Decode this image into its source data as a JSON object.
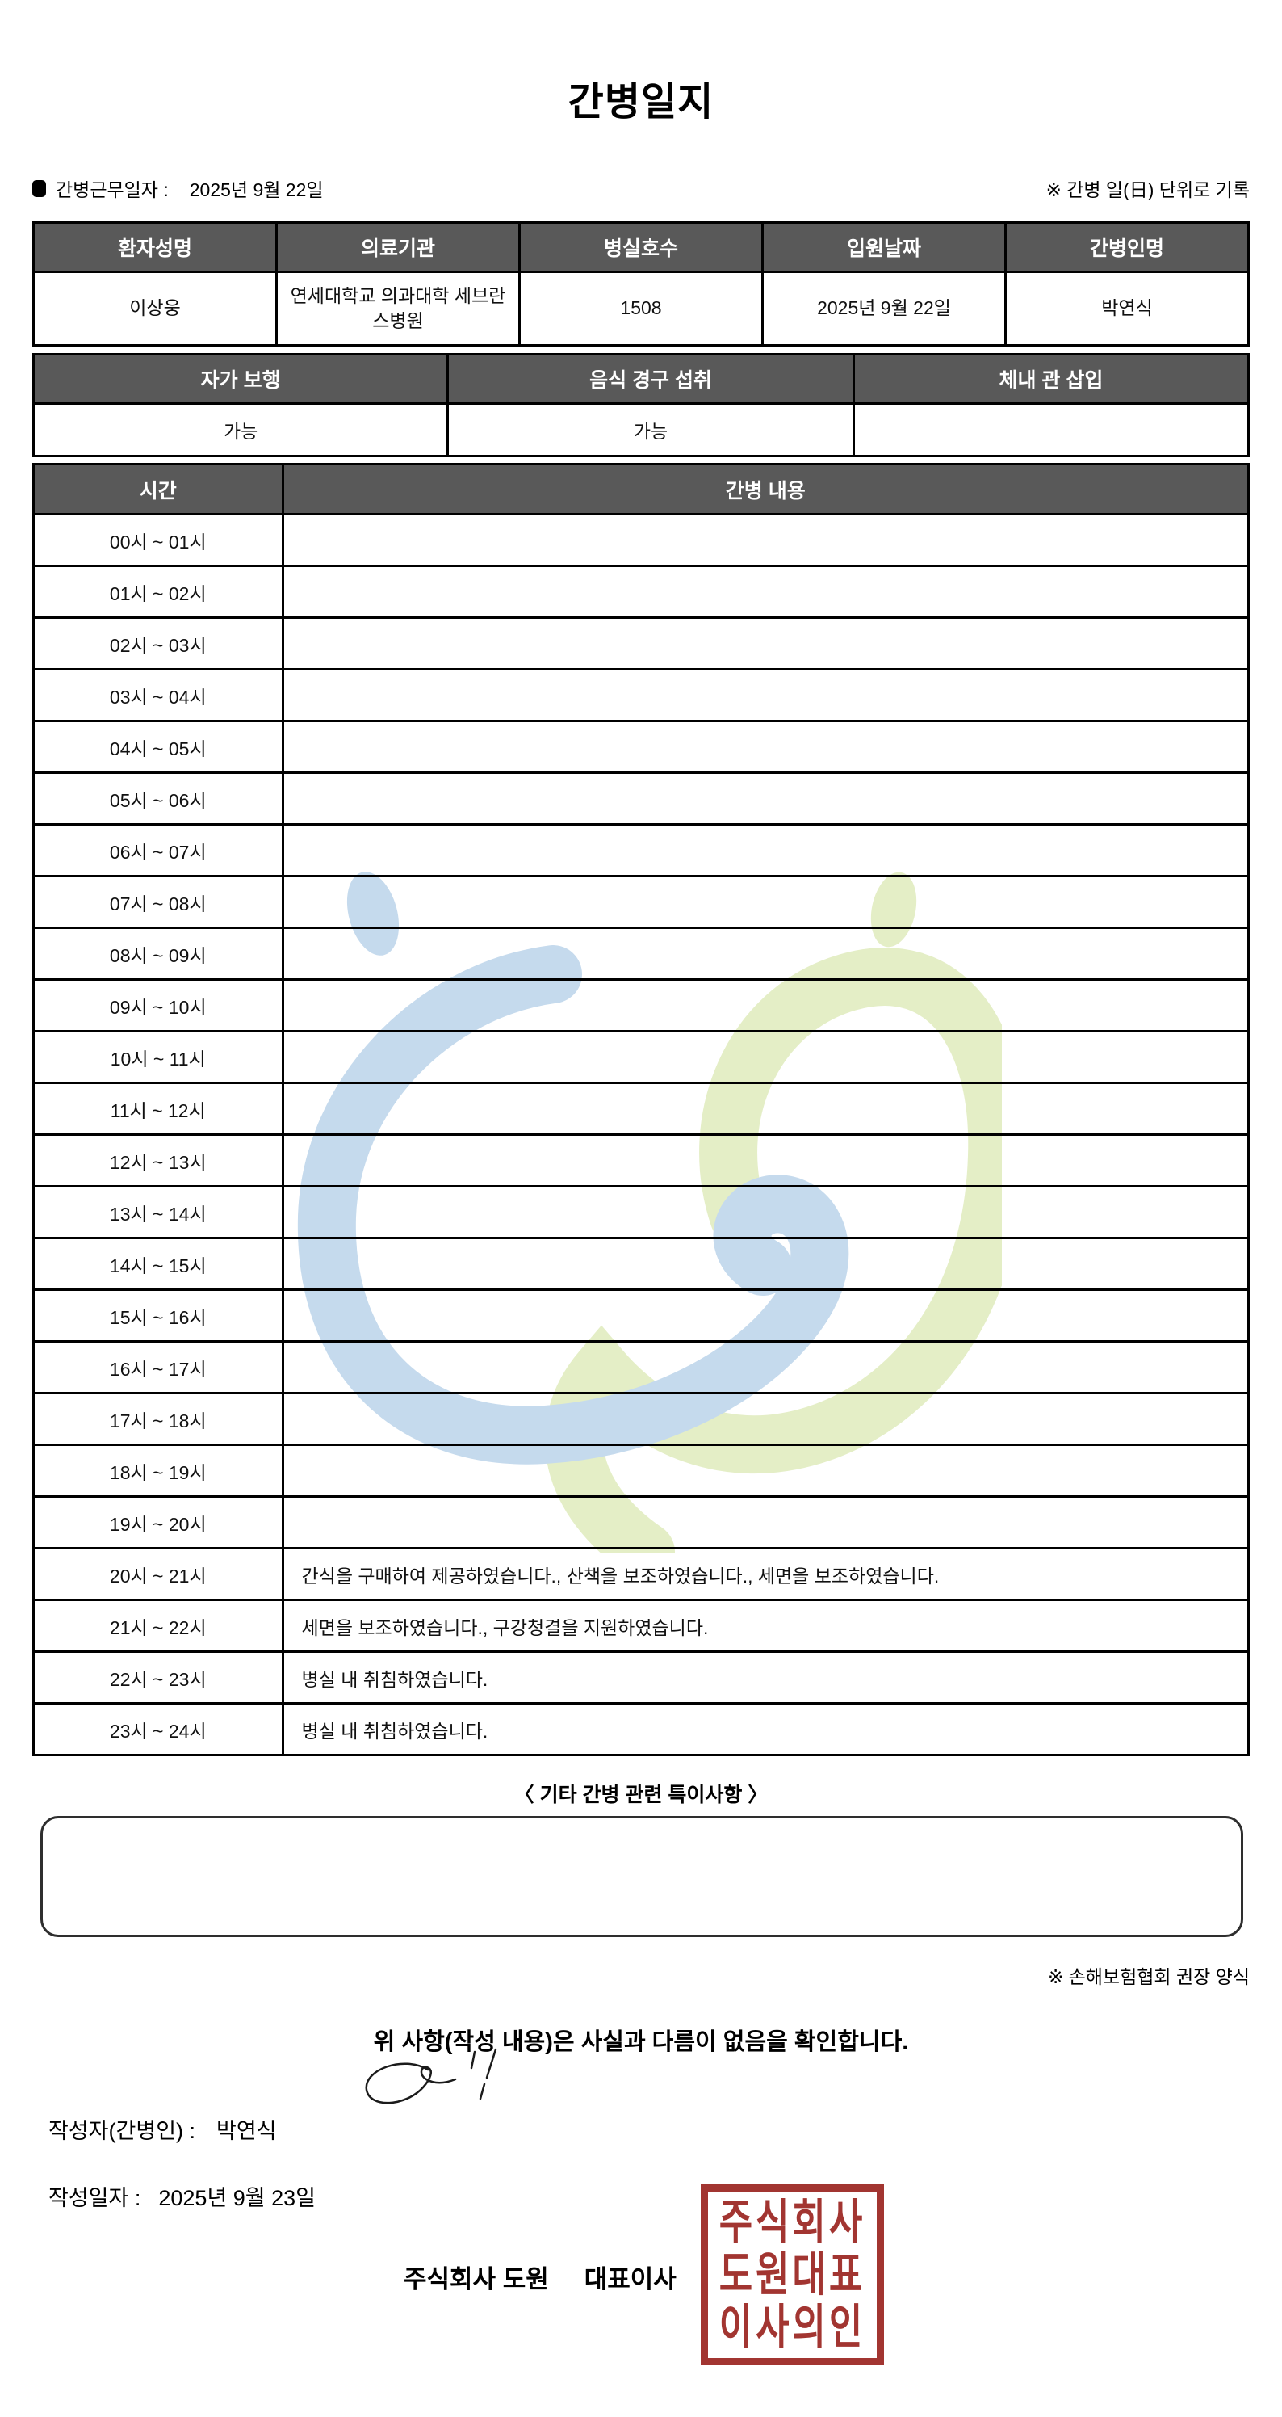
{
  "title": "간병일지",
  "meta": {
    "work_date_label": "간병근무일자 :",
    "work_date_value": "2025년 9월 22일",
    "unit_note": "※ 간병 일(日) 단위로 기록"
  },
  "info_table": {
    "headers": [
      "환자성명",
      "의료기관",
      "병실호수",
      "입원날짜",
      "간병인명"
    ],
    "values": [
      "이상웅",
      "연세대학교 의과대학 세브란스병원",
      "1508",
      "2025년 9월 22일",
      "박연식"
    ]
  },
  "condition_table": {
    "headers": [
      "자가 보행",
      "음식 경구 섭취",
      "체내 관 삽입"
    ],
    "values": [
      "가능",
      "가능",
      ""
    ]
  },
  "care_table": {
    "headers": [
      "시간",
      "간병 내용"
    ],
    "rows": [
      {
        "time": "00시 ~ 01시",
        "content": ""
      },
      {
        "time": "01시 ~ 02시",
        "content": ""
      },
      {
        "time": "02시 ~ 03시",
        "content": ""
      },
      {
        "time": "03시 ~ 04시",
        "content": ""
      },
      {
        "time": "04시 ~ 05시",
        "content": ""
      },
      {
        "time": "05시 ~ 06시",
        "content": ""
      },
      {
        "time": "06시 ~ 07시",
        "content": ""
      },
      {
        "time": "07시 ~ 08시",
        "content": ""
      },
      {
        "time": "08시 ~ 09시",
        "content": ""
      },
      {
        "time": "09시 ~ 10시",
        "content": ""
      },
      {
        "time": "10시 ~ 11시",
        "content": ""
      },
      {
        "time": "11시 ~ 12시",
        "content": ""
      },
      {
        "time": "12시 ~ 13시",
        "content": ""
      },
      {
        "time": "13시 ~ 14시",
        "content": ""
      },
      {
        "time": "14시 ~ 15시",
        "content": ""
      },
      {
        "time": "15시 ~ 16시",
        "content": ""
      },
      {
        "time": "16시 ~ 17시",
        "content": ""
      },
      {
        "time": "17시 ~ 18시",
        "content": ""
      },
      {
        "time": "18시 ~ 19시",
        "content": ""
      },
      {
        "time": "19시 ~ 20시",
        "content": ""
      },
      {
        "time": "20시 ~ 21시",
        "content": "간식을 구매하여 제공하였습니다., 산책을 보조하였습니다., 세면을 보조하였습니다."
      },
      {
        "time": "21시 ~ 22시",
        "content": "세면을 보조하였습니다., 구강청결을 지원하였습니다."
      },
      {
        "time": "22시 ~ 23시",
        "content": "병실 내 취침하였습니다."
      },
      {
        "time": "23시 ~ 24시",
        "content": "병실 내 취침하였습니다."
      }
    ]
  },
  "notes": {
    "title": "〈 기타 간병 관련 특이사항 〉",
    "value": ""
  },
  "form_note": "※ 손해보험협회 권장 양식",
  "confirmation": "위 사항(작성 내용)은 사실과 다름이 없음을 확인합니다.",
  "writer": {
    "label": "작성자(간병인) :",
    "name": "박연식"
  },
  "write_date": {
    "label": "작성일자 :",
    "value": "2025년 9월 23일"
  },
  "company": {
    "name": "주식회사 도원",
    "ceo_title": "대표이사"
  },
  "stamp": {
    "rows": [
      "주식회사",
      "도원대표",
      "이사의인"
    ]
  },
  "colors": {
    "header_bg": "#595959",
    "table_border": "#000000",
    "watermark_blue": "#c5daed",
    "watermark_green": "#e4eec6",
    "stamp_red": "#a23531"
  }
}
